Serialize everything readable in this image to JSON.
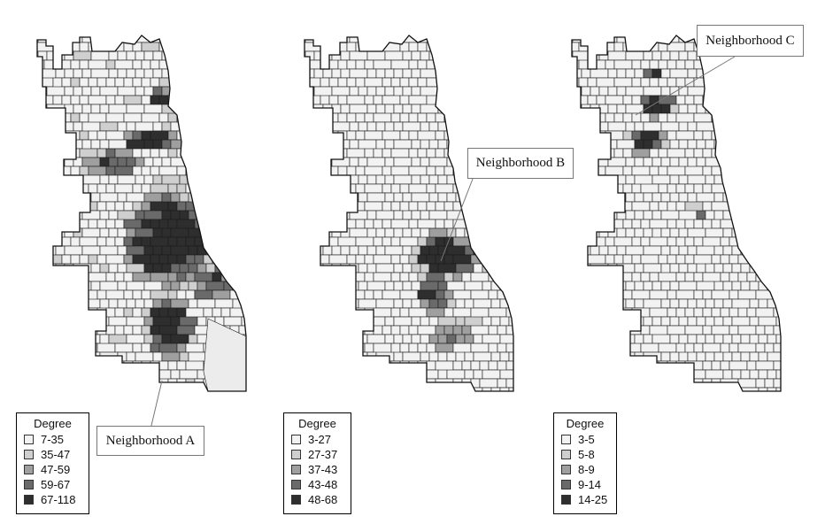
{
  "maps": [
    {
      "legend_title": "Degree",
      "categories": [
        {
          "label": "7-35",
          "color": "#f2f2f2"
        },
        {
          "label": "35-47",
          "color": "#cfcfcf"
        },
        {
          "label": "47-59",
          "color": "#9f9f9f"
        },
        {
          "label": "59-67",
          "color": "#6a6a6a"
        },
        {
          "label": "67-118",
          "color": "#2e2e2e"
        }
      ],
      "callout": "Neighborhood A"
    },
    {
      "legend_title": "Degree",
      "categories": [
        {
          "label": "3-27",
          "color": "#f2f2f2"
        },
        {
          "label": "27-37",
          "color": "#cfcfcf"
        },
        {
          "label": "37-43",
          "color": "#9f9f9f"
        },
        {
          "label": "43-48",
          "color": "#6a6a6a"
        },
        {
          "label": "48-68",
          "color": "#2e2e2e"
        }
      ],
      "callout": "Neighborhood B"
    },
    {
      "legend_title": "Degree",
      "categories": [
        {
          "label": "3-5",
          "color": "#f2f2f2"
        },
        {
          "label": "5-8",
          "color": "#cfcfcf"
        },
        {
          "label": "8-9",
          "color": "#9f9f9f"
        },
        {
          "label": "9-14",
          "color": "#6a6a6a"
        },
        {
          "label": "14-25",
          "color": "#2e2e2e"
        }
      ],
      "callout": "Neighborhood C"
    }
  ]
}
